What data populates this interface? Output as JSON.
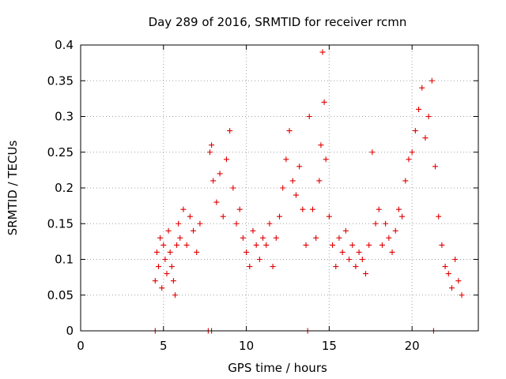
{
  "chart_data": {
    "type": "scatter",
    "title": "Day 289 of 2016, SRMTID for receiver rcmn",
    "xlabel": "GPS time / hours",
    "ylabel": "SRMTID / TECUs",
    "xlim": [
      0,
      24
    ],
    "ylim": [
      0,
      0.4
    ],
    "xticks": [
      "0",
      "5",
      "10",
      "15",
      "20"
    ],
    "yticks": [
      "0",
      "0.05",
      "0.1",
      "0.15",
      "0.2",
      "0.25",
      "0.3",
      "0.35",
      "0.4"
    ],
    "grid": true,
    "marker": "plus",
    "color": "#e00000",
    "series": [
      {
        "name": "SRMTID",
        "points": [
          [
            4.5,
            0.07
          ],
          [
            4.6,
            0.11
          ],
          [
            4.7,
            0.09
          ],
          [
            4.8,
            0.13
          ],
          [
            4.9,
            0.06
          ],
          [
            5.0,
            0.12
          ],
          [
            5.1,
            0.1
          ],
          [
            5.2,
            0.08
          ],
          [
            5.3,
            0.14
          ],
          [
            5.4,
            0.11
          ],
          [
            5.5,
            0.09
          ],
          [
            5.6,
            0.07
          ],
          [
            5.7,
            0.05
          ],
          [
            5.8,
            0.12
          ],
          [
            5.9,
            0.15
          ],
          [
            6.0,
            0.13
          ],
          [
            6.2,
            0.17
          ],
          [
            6.4,
            0.12
          ],
          [
            6.6,
            0.16
          ],
          [
            6.8,
            0.14
          ],
          [
            7.0,
            0.11
          ],
          [
            7.2,
            0.15
          ],
          [
            7.8,
            0.25
          ],
          [
            7.9,
            0.26
          ],
          [
            8.0,
            0.21
          ],
          [
            8.2,
            0.18
          ],
          [
            8.4,
            0.22
          ],
          [
            8.6,
            0.16
          ],
          [
            8.8,
            0.24
          ],
          [
            9.0,
            0.28
          ],
          [
            9.2,
            0.2
          ],
          [
            9.4,
            0.15
          ],
          [
            9.6,
            0.17
          ],
          [
            9.8,
            0.13
          ],
          [
            10.0,
            0.11
          ],
          [
            10.2,
            0.09
          ],
          [
            10.4,
            0.14
          ],
          [
            10.6,
            0.12
          ],
          [
            10.8,
            0.1
          ],
          [
            11.0,
            0.13
          ],
          [
            11.2,
            0.12
          ],
          [
            11.4,
            0.15
          ],
          [
            11.6,
            0.09
          ],
          [
            11.8,
            0.13
          ],
          [
            12.0,
            0.16
          ],
          [
            12.2,
            0.2
          ],
          [
            12.4,
            0.24
          ],
          [
            12.6,
            0.28
          ],
          [
            12.8,
            0.21
          ],
          [
            13.0,
            0.19
          ],
          [
            13.2,
            0.23
          ],
          [
            13.4,
            0.17
          ],
          [
            13.6,
            0.12
          ],
          [
            13.8,
            0.3
          ],
          [
            14.0,
            0.17
          ],
          [
            14.2,
            0.13
          ],
          [
            14.4,
            0.21
          ],
          [
            14.5,
            0.26
          ],
          [
            14.6,
            0.39
          ],
          [
            14.7,
            0.32
          ],
          [
            14.8,
            0.24
          ],
          [
            15.0,
            0.16
          ],
          [
            15.2,
            0.12
          ],
          [
            15.4,
            0.09
          ],
          [
            15.6,
            0.13
          ],
          [
            15.8,
            0.11
          ],
          [
            16.0,
            0.14
          ],
          [
            16.2,
            0.1
          ],
          [
            16.4,
            0.12
          ],
          [
            16.6,
            0.09
          ],
          [
            16.8,
            0.11
          ],
          [
            17.0,
            0.1
          ],
          [
            17.2,
            0.08
          ],
          [
            17.4,
            0.12
          ],
          [
            17.6,
            0.25
          ],
          [
            17.8,
            0.15
          ],
          [
            18.0,
            0.17
          ],
          [
            18.2,
            0.12
          ],
          [
            18.4,
            0.15
          ],
          [
            18.6,
            0.13
          ],
          [
            18.8,
            0.11
          ],
          [
            19.0,
            0.14
          ],
          [
            19.2,
            0.17
          ],
          [
            19.4,
            0.16
          ],
          [
            19.6,
            0.21
          ],
          [
            19.8,
            0.24
          ],
          [
            20.0,
            0.25
          ],
          [
            20.2,
            0.28
          ],
          [
            20.4,
            0.31
          ],
          [
            20.6,
            0.34
          ],
          [
            20.8,
            0.27
          ],
          [
            21.0,
            0.3
          ],
          [
            21.2,
            0.35
          ],
          [
            21.4,
            0.23
          ],
          [
            21.6,
            0.16
          ],
          [
            21.8,
            0.12
          ],
          [
            22.0,
            0.09
          ],
          [
            22.2,
            0.08
          ],
          [
            22.4,
            0.06
          ],
          [
            22.6,
            0.1
          ],
          [
            22.8,
            0.07
          ],
          [
            23.0,
            0.05
          ]
        ]
      },
      {
        "name": "markers at zero",
        "points": [
          [
            4.5,
            0
          ],
          [
            7.7,
            0
          ],
          [
            7.9,
            0
          ],
          [
            13.7,
            0
          ],
          [
            21.3,
            0
          ]
        ]
      }
    ]
  }
}
